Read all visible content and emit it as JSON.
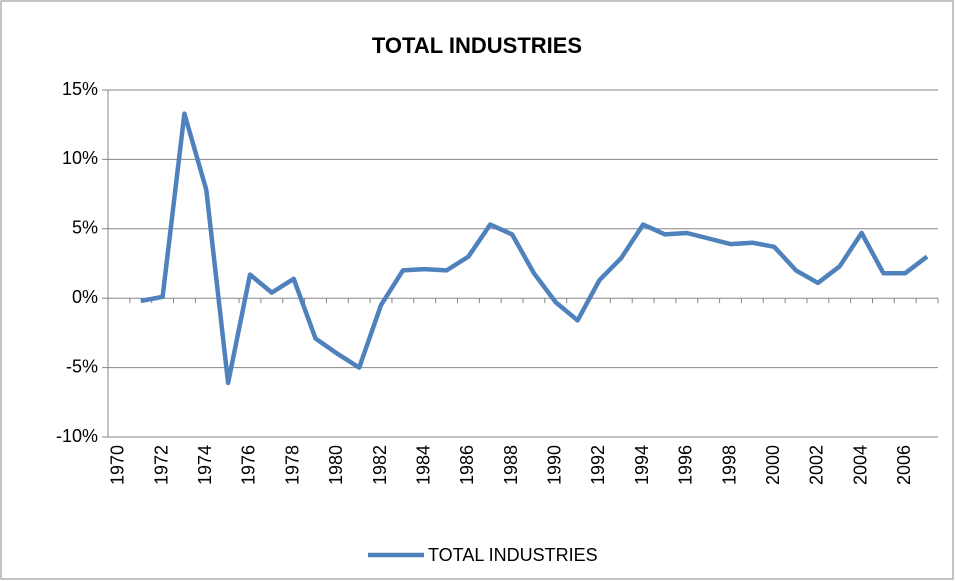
{
  "chart_data": {
    "type": "line",
    "title": "TOTAL INDUSTRIES",
    "categories": [
      "1970",
      null,
      "1972",
      null,
      "1974",
      null,
      "1976",
      null,
      "1978",
      null,
      "1980",
      null,
      "1982",
      null,
      "1984",
      null,
      "1986",
      null,
      "1988",
      null,
      "1990",
      null,
      "1992",
      null,
      "1994",
      null,
      "1996",
      null,
      "1998",
      null,
      "2000",
      null,
      "2002",
      null,
      "2004",
      null,
      "2006",
      null
    ],
    "series": [
      {
        "name": "TOTAL INDUSTRIES",
        "color": "#4f81bd",
        "values": [
          null,
          -0.2,
          0.1,
          13.3,
          7.8,
          -6.1,
          1.7,
          0.4,
          1.4,
          -2.9,
          -4.0,
          -5.0,
          -0.5,
          2.0,
          2.1,
          2.0,
          3.0,
          5.3,
          4.6,
          1.8,
          -0.3,
          -1.6,
          1.3,
          2.9,
          5.3,
          4.6,
          4.7,
          4.3,
          3.9,
          4.0,
          3.7,
          2.0,
          1.1,
          2.3,
          4.7,
          1.8,
          1.8,
          3.0
        ]
      }
    ],
    "ylim": [
      -10,
      15
    ],
    "yticks": [
      {
        "value": -10,
        "label": "-10%"
      },
      {
        "value": -5,
        "label": "-5%"
      },
      {
        "value": 0,
        "label": "0%"
      },
      {
        "value": 5,
        "label": "5%"
      },
      {
        "value": 10,
        "label": "10%"
      },
      {
        "value": 15,
        "label": "15%"
      }
    ],
    "grid": true,
    "legend": "bottom"
  }
}
